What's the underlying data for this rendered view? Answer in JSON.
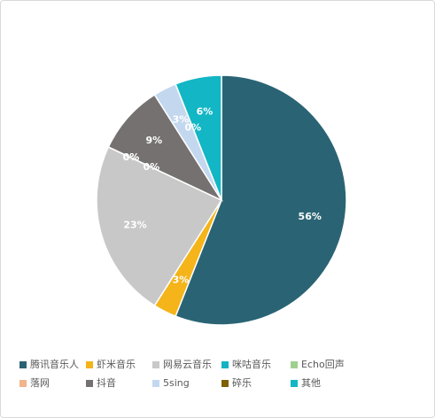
{
  "chart_data": {
    "type": "pie",
    "categories": [
      "腾讯音乐人",
      "虾米音乐",
      "网易云音乐",
      "咪咕音乐",
      "Echo回声",
      "落网",
      "抖音",
      "5sing",
      "碎乐",
      "其他"
    ],
    "values": [
      56,
      3,
      23,
      0,
      0,
      0,
      9,
      3,
      0,
      6
    ],
    "value_labels": [
      "56%",
      "3%",
      "23%",
      "0%",
      "0%",
      "0%",
      "9%",
      "3%",
      "0%",
      "6%"
    ],
    "colors": [
      "#2a6474",
      "#f4b41a",
      "#c8c8c8",
      "#13b3c2",
      "#9fd08f",
      "#f0b58a",
      "#767171",
      "#c3d8ef",
      "#7f6000",
      "#12b6c4"
    ]
  }
}
